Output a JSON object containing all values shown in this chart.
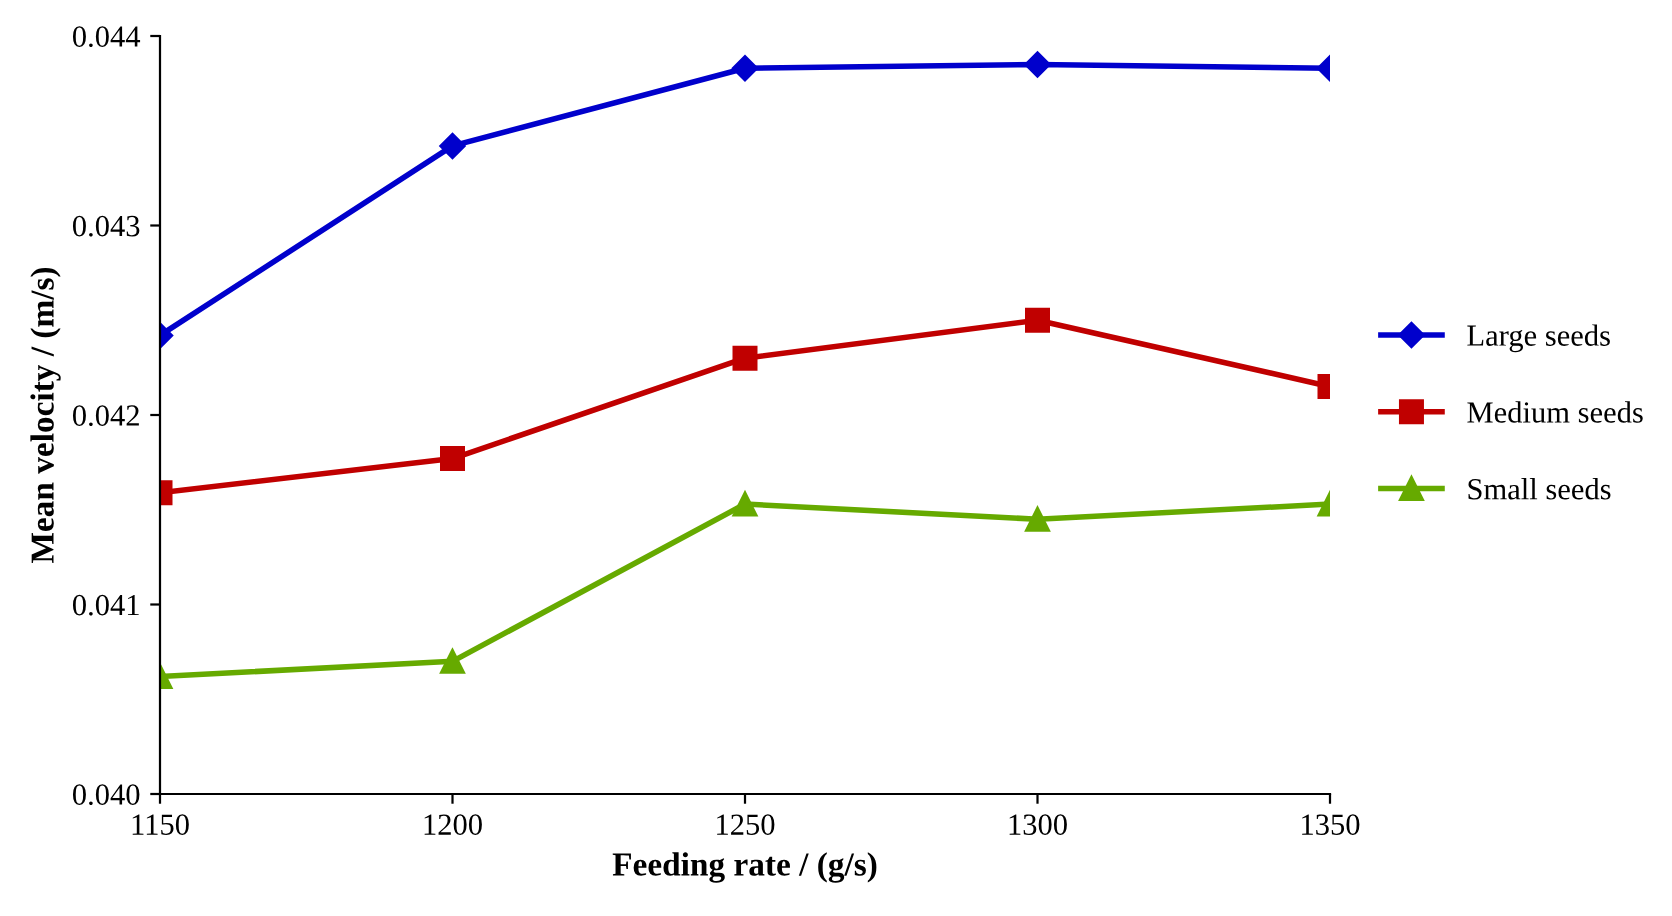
{
  "chart_data": {
    "type": "line",
    "xlabel": "Feeding rate / (g/s)",
    "ylabel": "Mean velocity / (m/s)",
    "x": [
      1150,
      1200,
      1250,
      1300,
      1350
    ],
    "series": [
      {
        "name": "Large seeds",
        "color": "#0000cc",
        "marker": "diamond",
        "values": [
          0.04242,
          0.04342,
          0.04383,
          0.04385,
          0.04383
        ]
      },
      {
        "name": "Medium seeds",
        "color": "#c00000",
        "marker": "square",
        "values": [
          0.04159,
          0.04177,
          0.0423,
          0.0425,
          0.04215
        ]
      },
      {
        "name": "Small seeds",
        "color": "#66aa00",
        "marker": "triangle",
        "values": [
          0.04062,
          0.0407,
          0.04153,
          0.04145,
          0.04153
        ]
      }
    ],
    "xlim": [
      1150,
      1350
    ],
    "xticks": [
      1150,
      1200,
      1250,
      1300,
      1350
    ],
    "ylim": [
      0.04,
      0.044
    ],
    "yticks": [
      {
        "value": 0.04,
        "label": "0.040"
      },
      {
        "value": 0.041,
        "label": "0.041"
      },
      {
        "value": 0.042,
        "label": "0.042"
      },
      {
        "value": 0.043,
        "label": "0.043"
      },
      {
        "value": 0.044,
        "label": "0.044"
      }
    ],
    "grid": false,
    "legend": "right"
  }
}
